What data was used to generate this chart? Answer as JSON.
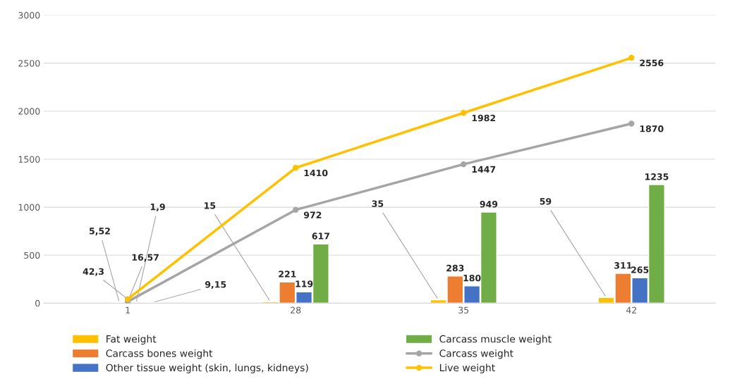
{
  "chart_data": {
    "type": "bar",
    "categories": [
      "1",
      "28",
      "35",
      "42"
    ],
    "series": [
      {
        "name": "Fat weight",
        "color": "#ffc000",
        "values": [
          null,
          15,
          35,
          59
        ],
        "value_labels": [
          null,
          "15",
          "35",
          "59"
        ]
      },
      {
        "name": "Carcass bones weight",
        "color": "#ed7d31",
        "values": [
          5.52,
          221,
          283,
          311
        ],
        "value_labels": [
          "5,52",
          "221",
          "283",
          "311"
        ]
      },
      {
        "name": "Other tissue weight (skin, lungs, kidneys)",
        "color": "#4472c4",
        "values": [
          1.9,
          119,
          180,
          265
        ],
        "value_labels": [
          "1,9",
          "119",
          "180",
          "265"
        ]
      },
      {
        "name": "Carcass muscle weight",
        "color": "#70ad47",
        "values": [
          9.15,
          617,
          949,
          1235
        ],
        "value_labels": [
          "9,15",
          "617",
          "949",
          "1235"
        ]
      },
      {
        "name": "Carcass weight",
        "type": "line",
        "color": "#a5a5a5",
        "marker": "circle",
        "values": [
          16.57,
          972,
          1447,
          1870
        ],
        "value_labels": [
          "16,57",
          "972",
          "1447",
          "1870"
        ]
      },
      {
        "name": "Live weight",
        "type": "line",
        "color": "#ffc000",
        "marker": "circle",
        "values": [
          42.3,
          1410,
          1982,
          2556
        ],
        "value_labels": [
          "42,3",
          "1410",
          "1982",
          "2556"
        ]
      }
    ],
    "ylim": [
      0,
      3000
    ],
    "yticks": [
      0,
      500,
      1000,
      1500,
      2000,
      2500,
      3000
    ],
    "grid": "y",
    "legend": "bottom"
  }
}
